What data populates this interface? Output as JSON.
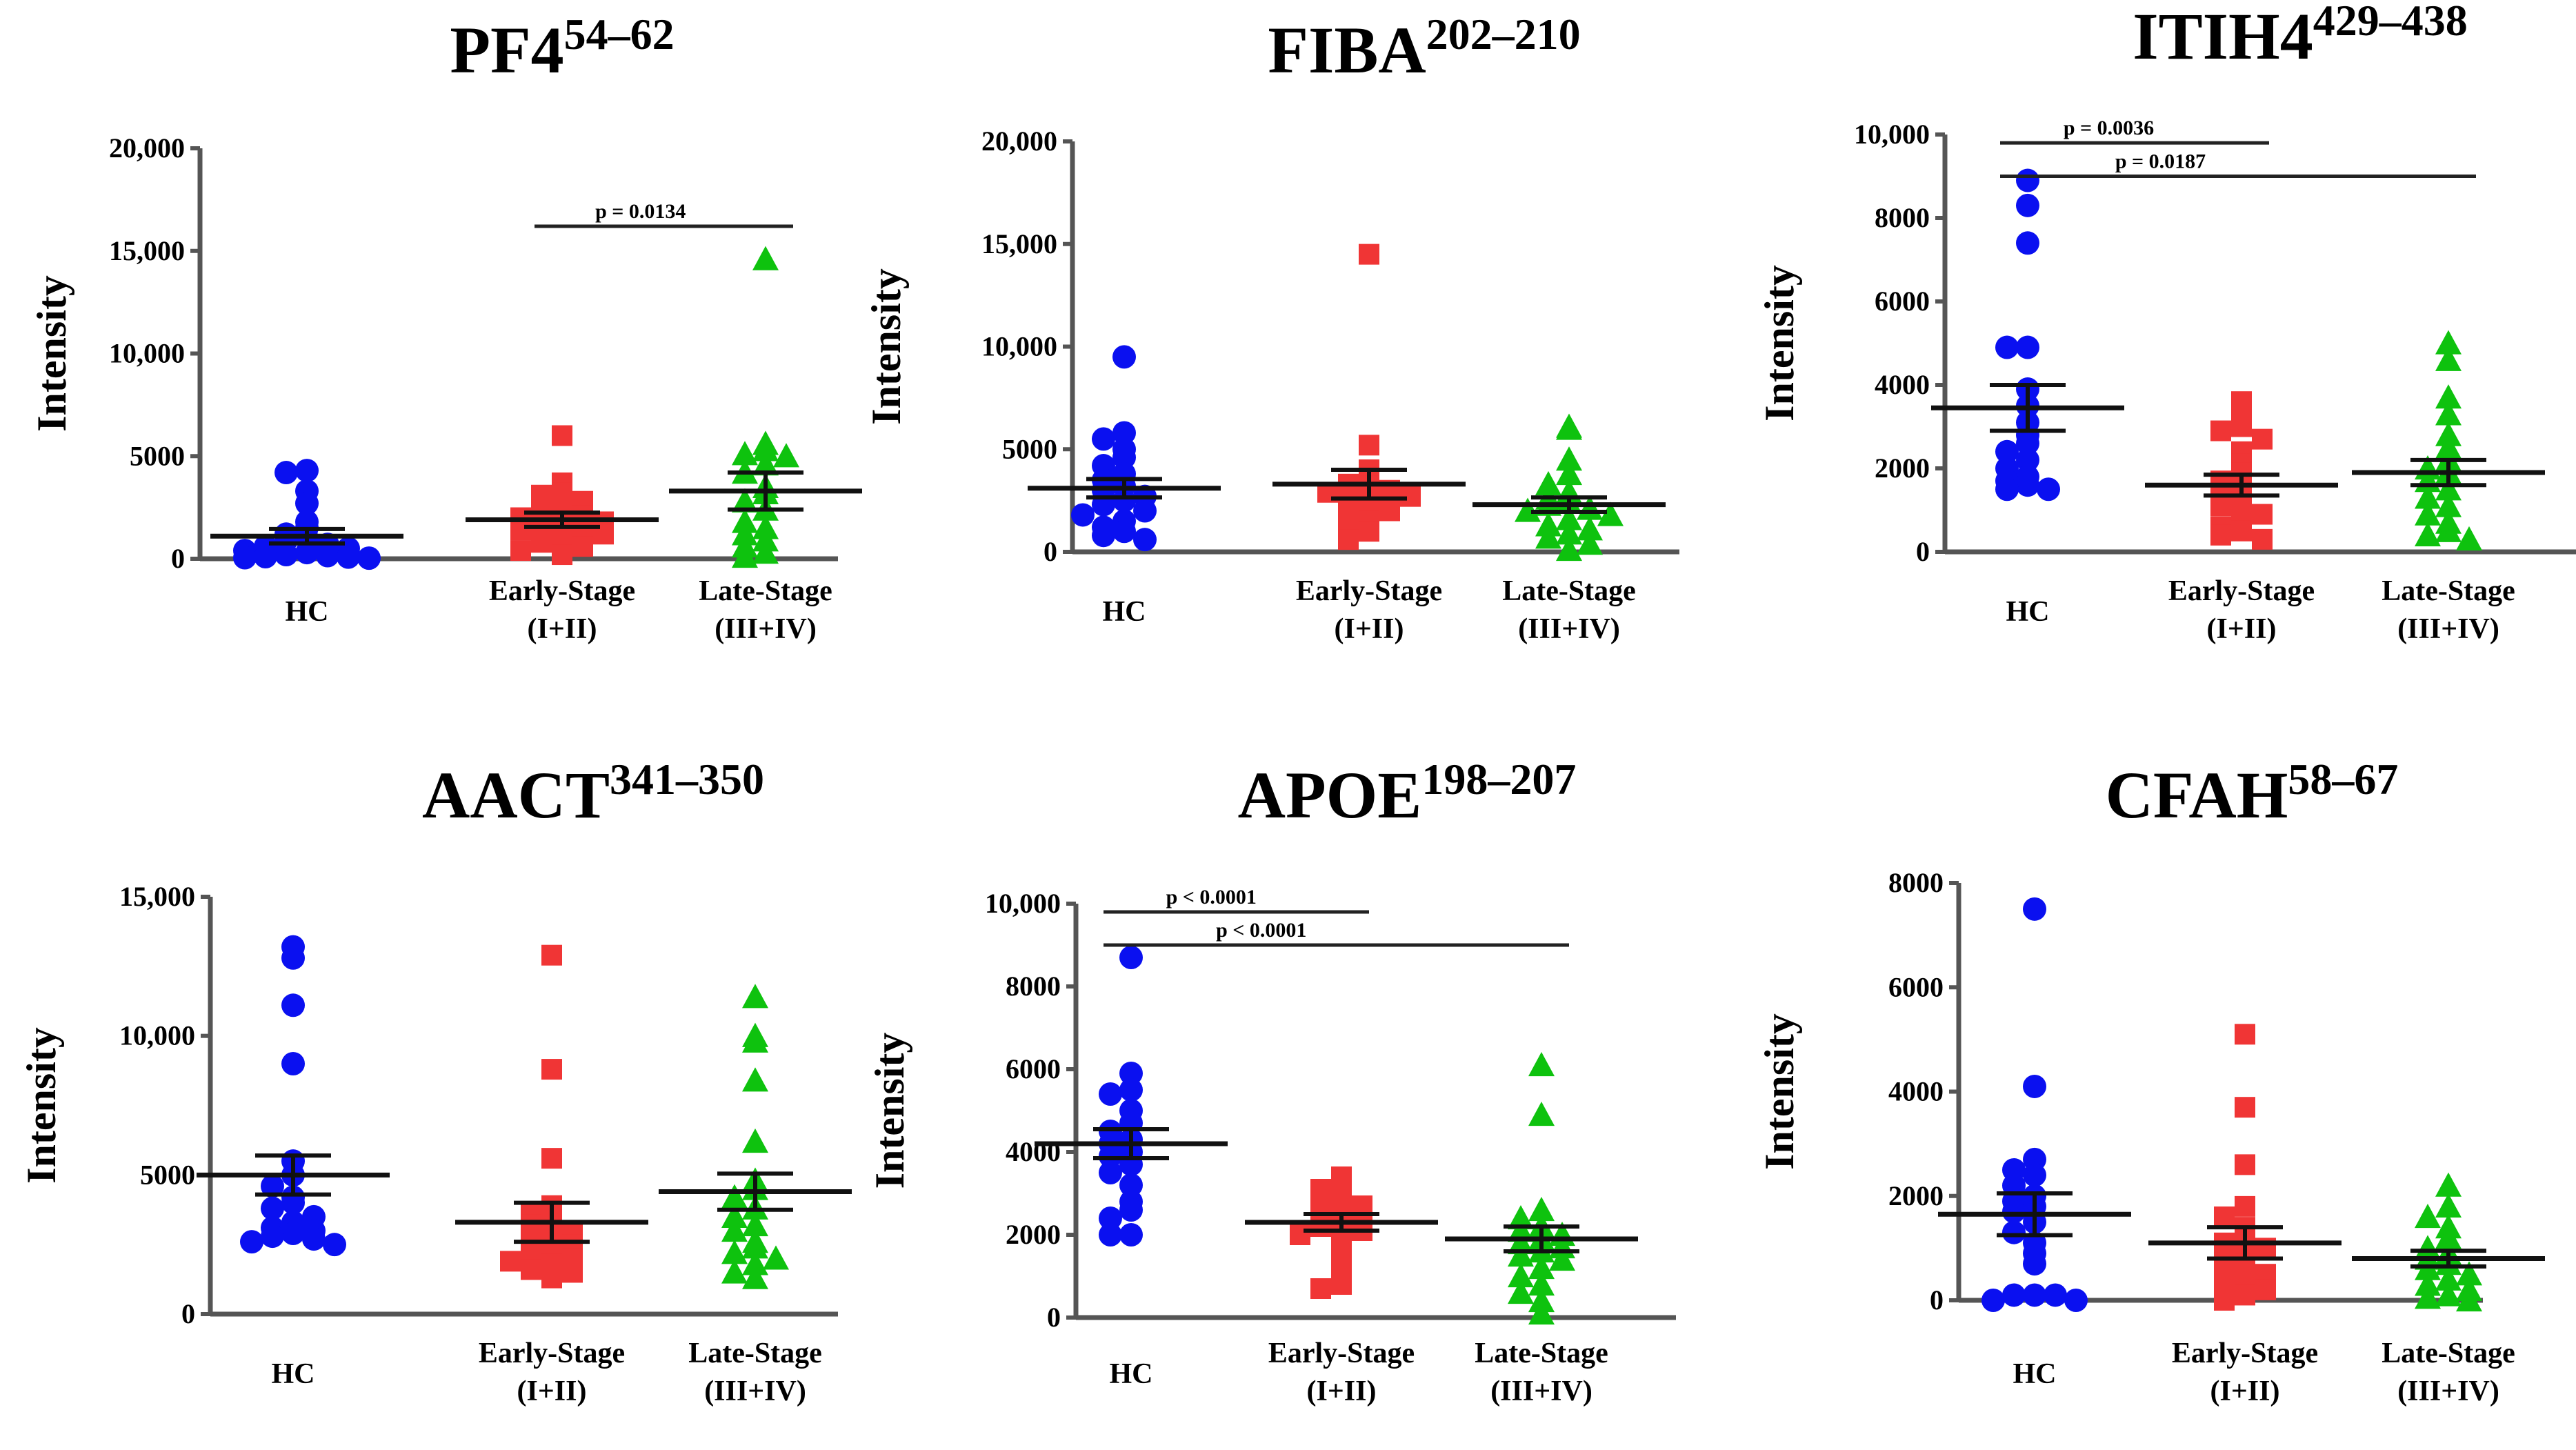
{
  "chart_data": [
    {
      "type": "scatter",
      "title": "PF4",
      "title_sup": "54–62",
      "ylabel": "Intensity",
      "ylim": [
        0,
        20000
      ],
      "yticks": [
        0,
        5000,
        10000,
        15000,
        20000
      ],
      "ytick_labels": [
        "0",
        "5000",
        "10,000",
        "15,000",
        "20,000"
      ],
      "categories": [
        {
          "line1": "HC",
          "line2": ""
        },
        {
          "line1": "Early-Stage",
          "line2": "(I+II)"
        },
        {
          "line1": "Late-Stage",
          "line2": "(III+IV)"
        }
      ],
      "series": [
        {
          "name": "HC",
          "color": "#0a10f0",
          "marker": "circle",
          "mean": 1100,
          "sem": 350,
          "values": [
            4300,
            4200,
            3300,
            2700,
            1800,
            1500,
            1200,
            1000,
            900,
            700,
            600,
            500,
            400,
            300,
            200,
            150,
            100,
            80,
            50,
            30
          ]
        },
        {
          "name": "Early-Stage (I+II)",
          "color": "#f03535",
          "marker": "square",
          "mean": 1900,
          "sem": 350,
          "values": [
            6000,
            3700,
            3200,
            3100,
            2800,
            2500,
            2300,
            2100,
            2000,
            1800,
            1700,
            1600,
            1500,
            1400,
            1200,
            1000,
            800,
            600,
            400,
            200
          ]
        },
        {
          "name": "Late-Stage (III+IV)",
          "color": "#0ec20e",
          "marker": "triangle",
          "mean": 3300,
          "sem": 900,
          "values": [
            14600,
            5600,
            5300,
            5100,
            5000,
            4600,
            4200,
            3500,
            3200,
            2800,
            2400,
            1800,
            1500,
            1200,
            900,
            600,
            300,
            100
          ]
        }
      ],
      "significance": [
        {
          "from": 2,
          "to": 3,
          "label": "p = 0.0134",
          "y": 16200
        }
      ]
    },
    {
      "type": "scatter",
      "title": "FIBA",
      "title_sup": "202–210",
      "ylabel": "Intensity",
      "ylim": [
        0,
        20000
      ],
      "yticks": [
        0,
        5000,
        10000,
        15000,
        20000
      ],
      "ytick_labels": [
        "0",
        "5000",
        "10,000",
        "15,000",
        "20,000"
      ],
      "categories": [
        {
          "line1": "HC",
          "line2": ""
        },
        {
          "line1": "Early-Stage",
          "line2": "(I+II)"
        },
        {
          "line1": "Late-Stage",
          "line2": "(III+IV)"
        }
      ],
      "series": [
        {
          "name": "HC",
          "color": "#0a10f0",
          "marker": "circle",
          "mean": 3100,
          "sem": 450,
          "values": [
            9500,
            5800,
            5500,
            5000,
            4600,
            4200,
            3800,
            3500,
            3200,
            3000,
            2700,
            2500,
            2300,
            2000,
            1800,
            1500,
            1200,
            1000,
            800,
            600
          ]
        },
        {
          "name": "Early-Stage (I+II)",
          "color": "#f03535",
          "marker": "square",
          "mean": 3300,
          "sem": 700,
          "values": [
            14500,
            5200,
            4000,
            3600,
            3300,
            3200,
            3100,
            3000,
            2900,
            2700,
            2500,
            2200,
            2000,
            1500,
            1200,
            1000,
            600
          ]
        },
        {
          "name": "Late-Stage (III+IV)",
          "color": "#0ec20e",
          "marker": "triangle",
          "mean": 2300,
          "sem": 350,
          "values": [
            6100,
            6000,
            4500,
            3800,
            3300,
            2900,
            2600,
            2400,
            2300,
            2100,
            2000,
            1800,
            1600,
            1300,
            1100,
            900,
            700,
            400,
            100
          ]
        }
      ],
      "significance": []
    },
    {
      "type": "scatter",
      "title": "ITIH4",
      "title_sup": "429–438",
      "ylabel": "Intensity",
      "ylim": [
        0,
        10000
      ],
      "yticks": [
        0,
        2000,
        4000,
        6000,
        8000,
        10000
      ],
      "ytick_labels": [
        "0",
        "2000",
        "4000",
        "6000",
        "8000",
        "10,000"
      ],
      "categories": [
        {
          "line1": "HC",
          "line2": ""
        },
        {
          "line1": "Early-Stage",
          "line2": "(I+II)"
        },
        {
          "line1": "Late-Stage",
          "line2": "(III+IV)"
        }
      ],
      "series": [
        {
          "name": "HC",
          "color": "#0a10f0",
          "marker": "circle",
          "mean": 3450,
          "sem": 550,
          "values": [
            8900,
            8300,
            7400,
            4900,
            4900,
            3900,
            3500,
            3100,
            2800,
            2600,
            2400,
            2200,
            2000,
            1800,
            1700,
            1600,
            1500,
            1500
          ]
        },
        {
          "name": "Early-Stage (I+II)",
          "color": "#f03535",
          "marker": "square",
          "mean": 1600,
          "sem": 250,
          "values": [
            3600,
            3300,
            3000,
            2900,
            2700,
            2400,
            2100,
            1900,
            1700,
            1600,
            1400,
            1200,
            1100,
            900,
            800,
            600,
            500,
            400,
            300
          ]
        },
        {
          "name": "Late-Stage (III+IV)",
          "color": "#0ec20e",
          "marker": "triangle",
          "mean": 1900,
          "sem": 300,
          "values": [
            5000,
            4600,
            3700,
            3300,
            2800,
            2500,
            2200,
            2000,
            1900,
            1700,
            1500,
            1300,
            1100,
            900,
            700,
            500,
            400,
            300
          ]
        }
      ],
      "significance": [
        {
          "from": 1,
          "to": 2,
          "label": "p = 0.0036",
          "y": 9800
        },
        {
          "from": 1,
          "to": 3,
          "label": "p = 0.0187",
          "y": 9000
        }
      ]
    },
    {
      "type": "scatter",
      "title": "AACT",
      "title_sup": "341–350",
      "ylabel": "Intensity",
      "ylim": [
        0,
        15000
      ],
      "yticks": [
        0,
        5000,
        10000,
        15000
      ],
      "ytick_labels": [
        "0",
        "5000",
        "10,000",
        "15,000"
      ],
      "categories": [
        {
          "line1": "HC",
          "line2": ""
        },
        {
          "line1": "Early-Stage",
          "line2": "(I+II)"
        },
        {
          "line1": "Late-Stage",
          "line2": "(III+IV)"
        }
      ],
      "series": [
        {
          "name": "HC",
          "color": "#0a10f0",
          "marker": "circle",
          "mean": 5000,
          "sem": 700,
          "values": [
            13200,
            12800,
            11100,
            9000,
            5500,
            5000,
            4600,
            4200,
            4000,
            3800,
            3500,
            3300,
            3100,
            3000,
            2900,
            2800,
            2700,
            2600,
            2500
          ]
        },
        {
          "name": "Early-Stage (I+II)",
          "color": "#f03535",
          "marker": "square",
          "mean": 3300,
          "sem": 700,
          "values": [
            12900,
            8800,
            5600,
            3900,
            3600,
            3400,
            3200,
            3000,
            2800,
            2600,
            2500,
            2400,
            2200,
            2000,
            1900,
            1800,
            1600,
            1500,
            1300
          ]
        },
        {
          "name": "Late-Stage (III+IV)",
          "color": "#0ec20e",
          "marker": "triangle",
          "mean": 4400,
          "sem": 650,
          "values": [
            11400,
            10000,
            9800,
            8400,
            6200,
            4800,
            4500,
            4200,
            3800,
            3500,
            3200,
            3000,
            2600,
            2400,
            2200,
            2000,
            1800,
            1500,
            1300
          ]
        }
      ],
      "significance": []
    },
    {
      "type": "scatter",
      "title": "APOE",
      "title_sup": "198–207",
      "ylabel": "Intensity",
      "ylim": [
        0,
        10000
      ],
      "yticks": [
        0,
        2000,
        4000,
        6000,
        8000,
        10000
      ],
      "ytick_labels": [
        "0",
        "2000",
        "4000",
        "6000",
        "8000",
        "10,000"
      ],
      "categories": [
        {
          "line1": "HC",
          "line2": ""
        },
        {
          "line1": "Early-Stage",
          "line2": "(I+II)"
        },
        {
          "line1": "Late-Stage",
          "line2": "(III+IV)"
        }
      ],
      "series": [
        {
          "name": "HC",
          "color": "#0a10f0",
          "marker": "circle",
          "mean": 4200,
          "sem": 350,
          "values": [
            8700,
            5900,
            5500,
            5400,
            5000,
            4700,
            4500,
            4300,
            4200,
            4000,
            3900,
            3700,
            3500,
            3200,
            2800,
            2600,
            2400,
            2000,
            2000
          ]
        },
        {
          "name": "Early-Stage (I+II)",
          "color": "#f03535",
          "marker": "square",
          "mean": 2300,
          "sem": 200,
          "values": [
            3400,
            3300,
            3100,
            2900,
            2800,
            2700,
            2600,
            2500,
            2400,
            2300,
            2200,
            2100,
            2000,
            1800,
            1500,
            1200,
            800,
            700
          ]
        },
        {
          "name": "Late-Stage (III+IV)",
          "color": "#0ec20e",
          "marker": "triangle",
          "mean": 1900,
          "sem": 300,
          "values": [
            6100,
            4900,
            2600,
            2400,
            2200,
            2100,
            2000,
            1900,
            1800,
            1700,
            1600,
            1500,
            1400,
            1200,
            1000,
            800,
            600,
            400,
            100
          ]
        }
      ],
      "significance": [
        {
          "from": 1,
          "to": 2,
          "label": "p < 0.0001",
          "y": 9800
        },
        {
          "from": 1,
          "to": 3,
          "label": "p < 0.0001",
          "y": 9000
        }
      ]
    },
    {
      "type": "scatter",
      "title": "CFAH",
      "title_sup": "58–67",
      "ylabel": "Intensity",
      "ylim": [
        0,
        8000
      ],
      "yticks": [
        0,
        2000,
        4000,
        6000,
        8000
      ],
      "ytick_labels": [
        "0",
        "2000",
        "4000",
        "6000",
        "8000"
      ],
      "categories": [
        {
          "line1": "HC",
          "line2": ""
        },
        {
          "line1": "Early-Stage",
          "line2": "(I+II)"
        },
        {
          "line1": "Late-Stage",
          "line2": "(III+IV)"
        }
      ],
      "series": [
        {
          "name": "HC",
          "color": "#0a10f0",
          "marker": "circle",
          "mean": 1650,
          "sem": 400,
          "values": [
            7500,
            4100,
            2700,
            2500,
            2400,
            2200,
            2000,
            1900,
            1800,
            1700,
            1500,
            1300,
            1100,
            900,
            700,
            100,
            100,
            100,
            0,
            0
          ]
        },
        {
          "name": "Early-Stage (I+II)",
          "color": "#f03535",
          "marker": "square",
          "mean": 1100,
          "sem": 300,
          "values": [
            5100,
            3700,
            2600,
            1800,
            1600,
            1400,
            1200,
            1100,
            1000,
            900,
            800,
            700,
            600,
            500,
            400,
            300,
            200,
            100,
            0
          ]
        },
        {
          "name": "Late-Stage (III+IV)",
          "color": "#0ec20e",
          "marker": "triangle",
          "mean": 800,
          "sem": 150,
          "values": [
            2200,
            1800,
            1600,
            1400,
            1200,
            1000,
            900,
            800,
            700,
            600,
            500,
            400,
            300,
            200,
            100,
            50,
            0
          ]
        }
      ],
      "significance": []
    }
  ]
}
